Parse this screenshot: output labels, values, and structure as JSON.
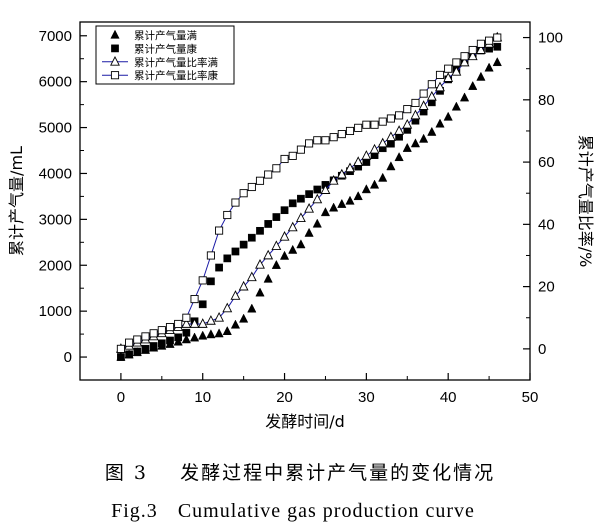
{
  "chart_data": {
    "type": "scatter",
    "xlabel": "发酵时间/d",
    "ylabel": "累计产气量/mL",
    "y2label": "累计产气量比率/%",
    "xlim": [
      -5,
      50
    ],
    "ylim": [
      -500,
      7300
    ],
    "y2lim": [
      -10,
      105
    ],
    "x_ticks": [
      0,
      10,
      20,
      30,
      40,
      50
    ],
    "y_ticks": [
      0,
      1000,
      2000,
      3000,
      4000,
      5000,
      6000,
      7000
    ],
    "y2_ticks": [
      0,
      20,
      40,
      60,
      80,
      100
    ],
    "legend_position": "top-left",
    "grid": false,
    "series": [
      {
        "name": "累计产气量满",
        "marker": "filled-triangle",
        "axis": "left",
        "x": [
          0,
          1,
          2,
          3,
          4,
          5,
          6,
          7,
          8,
          9,
          10,
          11,
          12,
          13,
          14,
          15,
          16,
          17,
          18,
          19,
          20,
          21,
          22,
          23,
          24,
          25,
          26,
          27,
          28,
          29,
          30,
          31,
          32,
          33,
          34,
          35,
          36,
          37,
          38,
          39,
          40,
          41,
          42,
          43,
          44,
          45,
          46
        ],
        "values": [
          0,
          50,
          100,
          150,
          200,
          240,
          280,
          330,
          380,
          420,
          460,
          490,
          510,
          560,
          700,
          830,
          1050,
          1400,
          1700,
          2000,
          2200,
          2330,
          2450,
          2700,
          2900,
          3150,
          3250,
          3330,
          3400,
          3500,
          3650,
          3750,
          3900,
          4150,
          4350,
          4550,
          4650,
          4750,
          4900,
          5080,
          5230,
          5450,
          5650,
          5900,
          6100,
          6300,
          6420
        ]
      },
      {
        "name": "累计产气量康",
        "marker": "filled-square",
        "axis": "left",
        "x": [
          0,
          1,
          2,
          3,
          4,
          5,
          6,
          7,
          8,
          9,
          10,
          11,
          12,
          13,
          14,
          15,
          16,
          17,
          18,
          19,
          20,
          21,
          22,
          23,
          24,
          25,
          26,
          27,
          28,
          29,
          30,
          31,
          32,
          33,
          34,
          35,
          36,
          37,
          38,
          39,
          40,
          41,
          42,
          43,
          44,
          45,
          46
        ],
        "values": [
          0,
          60,
          120,
          180,
          240,
          300,
          360,
          430,
          530,
          780,
          1150,
          1650,
          1950,
          2150,
          2300,
          2450,
          2600,
          2750,
          2900,
          3050,
          3200,
          3350,
          3450,
          3550,
          3650,
          3750,
          3850,
          3950,
          4050,
          4150,
          4250,
          4400,
          4550,
          4650,
          4800,
          4950,
          5150,
          5350,
          5550,
          5800,
          6050,
          6250,
          6450,
          6600,
          6680,
          6720,
          6760
        ]
      },
      {
        "name": "累计产气量比率满",
        "marker": "open-triangle",
        "axis": "right",
        "x": [
          0,
          1,
          2,
          3,
          4,
          5,
          6,
          7,
          8,
          9,
          10,
          11,
          12,
          13,
          14,
          15,
          16,
          17,
          18,
          19,
          20,
          21,
          22,
          23,
          24,
          25,
          26,
          27,
          28,
          29,
          30,
          31,
          32,
          33,
          34,
          35,
          36,
          37,
          38,
          39,
          40,
          41,
          42,
          43,
          44,
          45,
          46
        ],
        "values": [
          0,
          1,
          2,
          3,
          4,
          5,
          6,
          7,
          8,
          8,
          8,
          9,
          10,
          13,
          17,
          20,
          23,
          27,
          30,
          33,
          36,
          39,
          42,
          45,
          48,
          51,
          54,
          56,
          58,
          60,
          62,
          64,
          66,
          68,
          70,
          72,
          75,
          78,
          81,
          84,
          87,
          89,
          92,
          94,
          96,
          98,
          100
        ]
      },
      {
        "name": "累计产气量比率康",
        "marker": "open-square",
        "axis": "right",
        "x": [
          0,
          1,
          2,
          3,
          4,
          5,
          6,
          7,
          8,
          9,
          10,
          11,
          12,
          13,
          14,
          15,
          16,
          17,
          18,
          19,
          20,
          21,
          22,
          23,
          24,
          25,
          26,
          27,
          28,
          29,
          30,
          31,
          32,
          33,
          34,
          35,
          36,
          37,
          38,
          39,
          40,
          41,
          42,
          43,
          44,
          45,
          46
        ],
        "values": [
          0,
          2,
          3,
          4,
          5,
          6,
          7,
          8,
          10,
          16,
          22,
          30,
          38,
          43,
          47,
          50,
          52,
          54,
          56,
          58,
          61,
          62,
          64,
          66,
          67,
          67,
          68,
          69,
          70,
          71,
          72,
          72,
          73,
          74,
          75,
          77,
          79,
          82,
          85,
          88,
          90,
          92,
          94,
          96,
          98,
          99,
          100
        ]
      }
    ]
  },
  "caption": {
    "zh_label": "图 3",
    "zh_text": "发酵过程中累计产气量的变化情况",
    "en_label": "Fig.3",
    "en_text": "Cumulative gas production curve"
  }
}
